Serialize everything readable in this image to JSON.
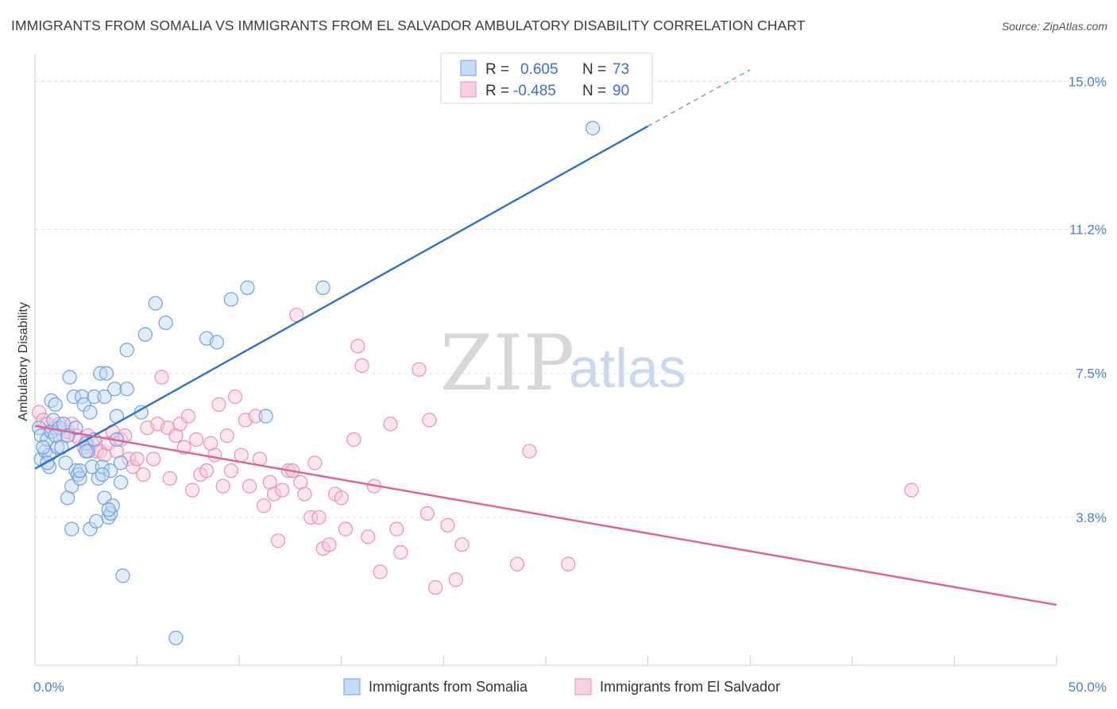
{
  "title": "IMMIGRANTS FROM SOMALIA VS IMMIGRANTS FROM EL SALVADOR AMBULATORY DISABILITY CORRELATION CHART",
  "source": "Source: ZipAtlas.com",
  "watermark": {
    "part1": "ZIP",
    "part2": "atlas"
  },
  "legend_box": {
    "rows": [
      {
        "r_label": "R =",
        "r_value": "0.605",
        "n_label": "N =",
        "n_value": "73",
        "color": "#6fa0e0"
      },
      {
        "r_label": "R =",
        "r_value": "-0.485",
        "n_label": "N =",
        "n_value": "90",
        "color": "#ee8fb0"
      }
    ]
  },
  "chart_data": {
    "type": "scatter",
    "title": "IMMIGRANTS FROM SOMALIA VS IMMIGRANTS FROM EL SALVADOR AMBULATORY DISABILITY CORRELATION CHART",
    "xlabel": "",
    "ylabel": "Ambulatory Disability",
    "xlim": [
      0,
      50
    ],
    "ylim": [
      0,
      15.5
    ],
    "x_tick_labels": [
      {
        "value": 0,
        "label": "0.0%"
      },
      {
        "value": 50,
        "label": "50.0%"
      }
    ],
    "y_tick_labels": [
      {
        "value": 3.8,
        "label": "3.8%"
      },
      {
        "value": 7.5,
        "label": "7.5%"
      },
      {
        "value": 11.2,
        "label": "11.2%"
      },
      {
        "value": 15.0,
        "label": "15.0%"
      }
    ],
    "grid": "horizontal dashed",
    "legend_position": "bottom",
    "series": [
      {
        "name": "Immigrants from Somalia",
        "color": "#6fa0e0",
        "line_color": "#2c72d0",
        "trend": {
          "x0": 0,
          "y0": 5.05,
          "x1": 30,
          "y1": 13.85,
          "dash_to_x": 35,
          "dash_to_y": 15.3
        },
        "points": [
          [
            0.2,
            6.1
          ],
          [
            0.3,
            5.9
          ],
          [
            0.3,
            5.3
          ],
          [
            0.5,
            5.5
          ],
          [
            0.6,
            5.8
          ],
          [
            0.7,
            5.4
          ],
          [
            0.7,
            5.1
          ],
          [
            0.8,
            6.0
          ],
          [
            0.8,
            6.8
          ],
          [
            0.9,
            6.3
          ],
          [
            1.0,
            6.7
          ],
          [
            1.1,
            5.6
          ],
          [
            1.2,
            6.1
          ],
          [
            1.3,
            5.6
          ],
          [
            1.5,
            5.2
          ],
          [
            1.6,
            4.3
          ],
          [
            1.7,
            7.4
          ],
          [
            1.8,
            3.5
          ],
          [
            1.8,
            4.6
          ],
          [
            1.9,
            6.9
          ],
          [
            2.0,
            5.0
          ],
          [
            2.1,
            4.9
          ],
          [
            2.2,
            4.8
          ],
          [
            2.3,
            6.9
          ],
          [
            2.4,
            6.7
          ],
          [
            2.5,
            5.7
          ],
          [
            2.6,
            5.5
          ],
          [
            2.7,
            6.5
          ],
          [
            2.7,
            3.5
          ],
          [
            2.8,
            5.1
          ],
          [
            2.9,
            6.9
          ],
          [
            3.0,
            3.7
          ],
          [
            3.1,
            4.8
          ],
          [
            3.2,
            7.5
          ],
          [
            3.3,
            5.1
          ],
          [
            3.4,
            6.9
          ],
          [
            3.4,
            4.3
          ],
          [
            3.5,
            7.5
          ],
          [
            3.6,
            3.8
          ],
          [
            3.7,
            5.0
          ],
          [
            3.7,
            3.9
          ],
          [
            3.8,
            4.1
          ],
          [
            3.9,
            7.1
          ],
          [
            4.0,
            5.8
          ],
          [
            4.0,
            6.4
          ],
          [
            4.2,
            5.2
          ],
          [
            4.2,
            4.7
          ],
          [
            4.3,
            2.3
          ],
          [
            4.5,
            7.1
          ],
          [
            4.5,
            8.1
          ],
          [
            5.2,
            6.5
          ],
          [
            5.4,
            8.5
          ],
          [
            5.9,
            9.3
          ],
          [
            6.4,
            8.8
          ],
          [
            6.9,
            0.7
          ],
          [
            8.4,
            8.4
          ],
          [
            8.9,
            8.3
          ],
          [
            9.6,
            9.4
          ],
          [
            10.4,
            9.7
          ],
          [
            11.3,
            6.4
          ],
          [
            14.1,
            9.7
          ],
          [
            27.3,
            13.8
          ],
          [
            0.4,
            5.6
          ],
          [
            0.6,
            5.2
          ],
          [
            1.0,
            5.9
          ],
          [
            1.4,
            6.2
          ],
          [
            1.6,
            5.9
          ],
          [
            2.0,
            6.1
          ],
          [
            2.2,
            5.0
          ],
          [
            2.5,
            5.5
          ],
          [
            2.9,
            5.8
          ],
          [
            3.3,
            4.9
          ],
          [
            3.6,
            4.0
          ]
        ]
      },
      {
        "name": "Immigrants from El Salvador",
        "color": "#ee8fb0",
        "line_color": "#e0628f",
        "trend": {
          "x0": 0,
          "y0": 6.15,
          "x1": 50,
          "y1": 1.55
        },
        "points": [
          [
            0.2,
            6.5
          ],
          [
            0.4,
            6.3
          ],
          [
            0.6,
            6.2
          ],
          [
            0.8,
            6.0
          ],
          [
            1.0,
            6.1
          ],
          [
            1.2,
            6.2
          ],
          [
            1.4,
            5.9
          ],
          [
            1.6,
            6.0
          ],
          [
            1.8,
            6.2
          ],
          [
            2.0,
            5.9
          ],
          [
            2.2,
            5.8
          ],
          [
            2.4,
            5.6
          ],
          [
            2.6,
            5.9
          ],
          [
            2.8,
            5.7
          ],
          [
            3.0,
            5.5
          ],
          [
            3.2,
            5.5
          ],
          [
            3.4,
            5.4
          ],
          [
            3.6,
            5.7
          ],
          [
            3.8,
            6.0
          ],
          [
            4.0,
            5.5
          ],
          [
            4.2,
            5.8
          ],
          [
            4.4,
            5.9
          ],
          [
            4.6,
            5.3
          ],
          [
            4.8,
            5.1
          ],
          [
            5.0,
            5.3
          ],
          [
            5.3,
            4.9
          ],
          [
            5.5,
            6.1
          ],
          [
            5.8,
            5.3
          ],
          [
            6.0,
            6.2
          ],
          [
            6.2,
            7.4
          ],
          [
            6.5,
            6.1
          ],
          [
            6.6,
            4.8
          ],
          [
            6.9,
            5.9
          ],
          [
            7.1,
            6.2
          ],
          [
            7.3,
            5.6
          ],
          [
            7.5,
            6.4
          ],
          [
            7.7,
            4.5
          ],
          [
            7.9,
            5.8
          ],
          [
            8.1,
            4.9
          ],
          [
            8.4,
            5.0
          ],
          [
            8.6,
            5.7
          ],
          [
            8.8,
            5.4
          ],
          [
            9.0,
            6.7
          ],
          [
            9.2,
            4.6
          ],
          [
            9.4,
            5.9
          ],
          [
            9.6,
            5.0
          ],
          [
            9.8,
            6.9
          ],
          [
            10.1,
            5.4
          ],
          [
            10.3,
            6.3
          ],
          [
            10.5,
            4.6
          ],
          [
            10.8,
            6.4
          ],
          [
            11.0,
            5.3
          ],
          [
            11.2,
            4.1
          ],
          [
            11.5,
            4.7
          ],
          [
            11.7,
            4.4
          ],
          [
            11.9,
            3.2
          ],
          [
            12.1,
            4.5
          ],
          [
            12.4,
            5.0
          ],
          [
            12.6,
            5.0
          ],
          [
            12.8,
            9.0
          ],
          [
            13.0,
            4.7
          ],
          [
            13.2,
            4.4
          ],
          [
            13.5,
            3.8
          ],
          [
            13.7,
            5.2
          ],
          [
            13.9,
            3.8
          ],
          [
            14.1,
            3.0
          ],
          [
            14.4,
            3.1
          ],
          [
            14.7,
            4.4
          ],
          [
            15.0,
            4.3
          ],
          [
            15.2,
            3.5
          ],
          [
            15.6,
            5.8
          ],
          [
            15.8,
            8.2
          ],
          [
            16.0,
            7.7
          ],
          [
            16.3,
            3.3
          ],
          [
            16.6,
            4.6
          ],
          [
            16.9,
            2.4
          ],
          [
            17.4,
            6.2
          ],
          [
            17.7,
            3.5
          ],
          [
            17.9,
            2.9
          ],
          [
            18.8,
            7.6
          ],
          [
            19.2,
            3.9
          ],
          [
            19.6,
            2.0
          ],
          [
            20.2,
            3.6
          ],
          [
            20.9,
            3.1
          ],
          [
            19.3,
            6.3
          ],
          [
            20.6,
            2.2
          ],
          [
            23.6,
            2.6
          ],
          [
            24.2,
            5.5
          ],
          [
            26.1,
            2.6
          ],
          [
            42.9,
            4.5
          ]
        ]
      }
    ]
  }
}
